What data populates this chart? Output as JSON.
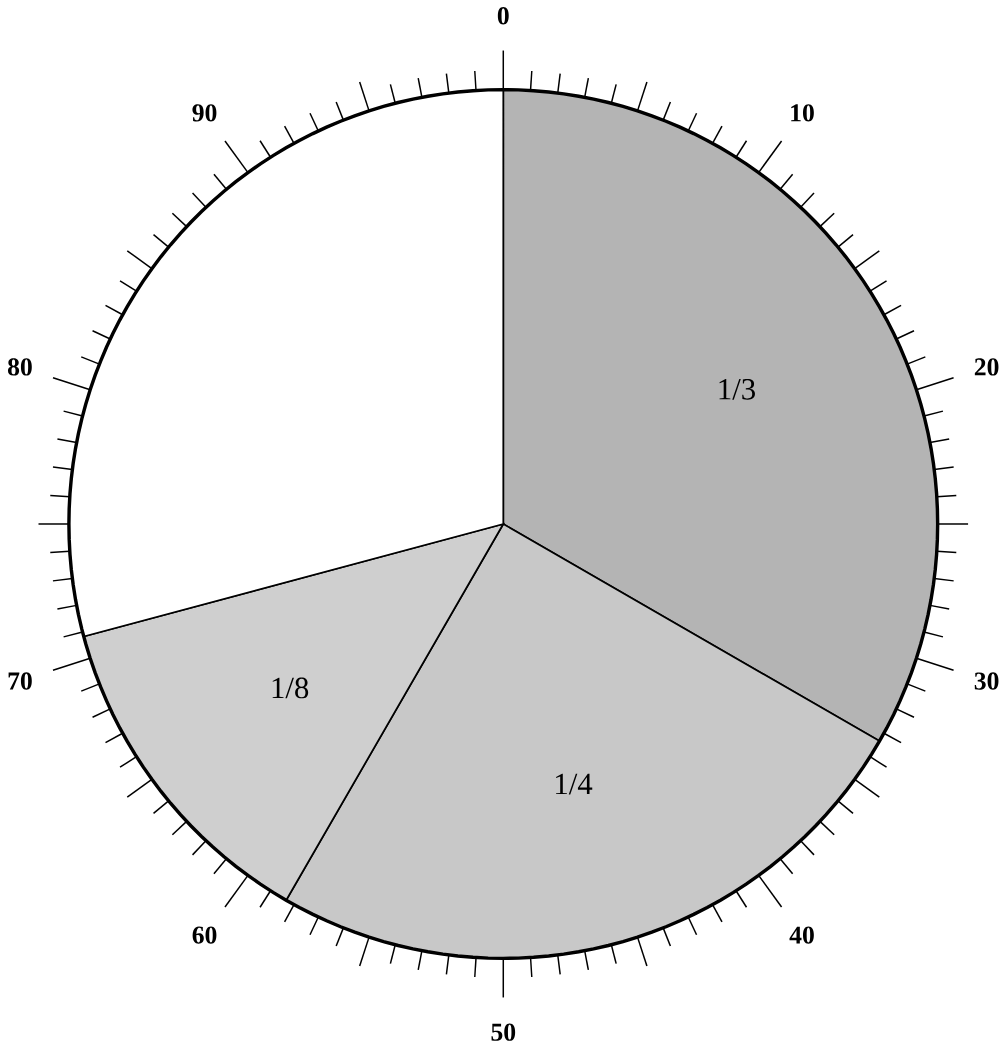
{
  "chart_data": {
    "type": "pie",
    "categories": [
      "1/3",
      "1/4",
      "1/8",
      null
    ],
    "values": [
      33.33,
      25,
      12.5,
      29.17
    ],
    "colors": [
      "#b4b4b4",
      "#c8c8c8",
      "#cfcfcf",
      "#ffffff"
    ],
    "annotations": [
      "0",
      "10",
      "20",
      "30",
      "40",
      "50",
      "60",
      "70",
      "80",
      "90"
    ]
  }
}
